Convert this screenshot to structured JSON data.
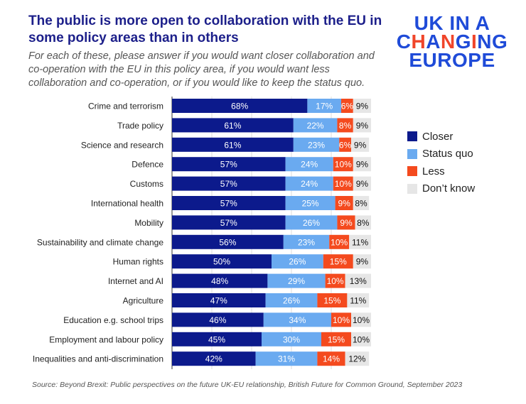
{
  "chart_data": {
    "type": "bar",
    "orientation": "horizontal",
    "stacked": true,
    "title": "The public is more open to collaboration with the EU in some policy areas than in others",
    "subtitle": "For each of these, please answer if you would want closer collaboration and co-operation with the EU in this policy area, if you would want less collaboration and co-operation, or if you would like to keep the status quo.",
    "source": "Source: Beyond Brexit: Public perspectives on the future UK-EU relationship, British Future for Common Ground, September 2023",
    "categories": [
      "Crime and terrorism",
      "Trade policy",
      "Science and research",
      "Defence",
      "Customs",
      "International health",
      "Mobility",
      "Sustainability and climate change",
      "Human rights",
      "Internet and AI",
      "Agriculture",
      "Education e.g. school trips",
      "Employment and labour policy",
      "Inequalities and anti-discrimination"
    ],
    "series": [
      {
        "name": "Closer",
        "color": "#0c1a8c",
        "values": [
          68,
          61,
          61,
          57,
          57,
          57,
          57,
          56,
          50,
          48,
          47,
          46,
          45,
          42
        ]
      },
      {
        "name": "Status quo",
        "color": "#6aaaf0",
        "values": [
          17,
          22,
          23,
          24,
          24,
          25,
          26,
          23,
          26,
          29,
          26,
          34,
          30,
          31
        ]
      },
      {
        "name": "Less",
        "color": "#f44a1e",
        "values": [
          6,
          8,
          6,
          10,
          10,
          9,
          9,
          10,
          15,
          10,
          15,
          10,
          15,
          14
        ]
      },
      {
        "name": "Don’t know",
        "color": "#e6e6e6",
        "values": [
          9,
          9,
          9,
          9,
          9,
          8,
          8,
          11,
          9,
          13,
          11,
          10,
          10,
          12
        ]
      }
    ],
    "value_suffix": "%",
    "xlim": [
      0,
      100
    ],
    "grid": true,
    "legend_position": "right"
  },
  "logo": {
    "text": "UK IN A CHANGING EUROPE"
  }
}
